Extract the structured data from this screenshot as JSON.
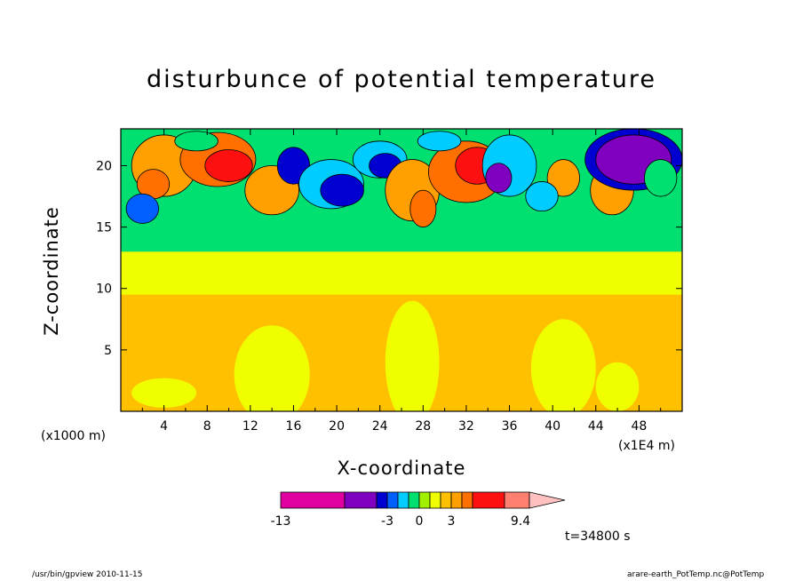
{
  "chart_data": {
    "type": "heatmap",
    "title": "disturbunce of potential temperature",
    "xlabel": "X-coordinate",
    "ylabel": "Z-coordinate",
    "x_unit_left": "(x1000 m)",
    "x_unit_right": "(x1E4 m)",
    "xlim": [
      0,
      52
    ],
    "ylim": [
      0,
      23
    ],
    "x_ticks": [
      "4",
      "8",
      "12",
      "16",
      "20",
      "24",
      "28",
      "32",
      "36",
      "40",
      "44",
      "48"
    ],
    "y_ticks": [
      "5",
      "10",
      "15",
      "20"
    ],
    "time_label": "t=34800 s",
    "colorbar": {
      "labels": [
        "-13",
        "-3",
        "0",
        "3",
        "9.4"
      ],
      "colors": [
        "#e000a0",
        "#8000c0",
        "#0000d0",
        "#0060ff",
        "#00ccff",
        "#00e070",
        "#a0f000",
        "#f0ff00",
        "#ffc000",
        "#ffa000",
        "#ff7000",
        "#ff1010",
        "#ff8070",
        "#ffc0c0"
      ]
    },
    "regions": [
      {
        "x": 25,
        "z": 7,
        "level": "slightly positive",
        "color": "#ffc000"
      },
      {
        "x": 25,
        "z": 12,
        "level": "near zero",
        "color": "#f0ff00"
      },
      {
        "x": 25,
        "z": 16,
        "level": "slightly negative",
        "color": "#00e070"
      },
      {
        "x": 10,
        "z": 20,
        "level": "positive max",
        "color": "#ff1010"
      },
      {
        "x": 32,
        "z": 20,
        "level": "positive max",
        "color": "#ff1010"
      },
      {
        "x": 47,
        "z": 20,
        "level": "negative min",
        "color": "#8000c0"
      }
    ]
  },
  "footer": {
    "left": "/usr/bin/gpview  2010-11-15",
    "right": "arare-earth_PotTemp.nc@PotTemp"
  }
}
